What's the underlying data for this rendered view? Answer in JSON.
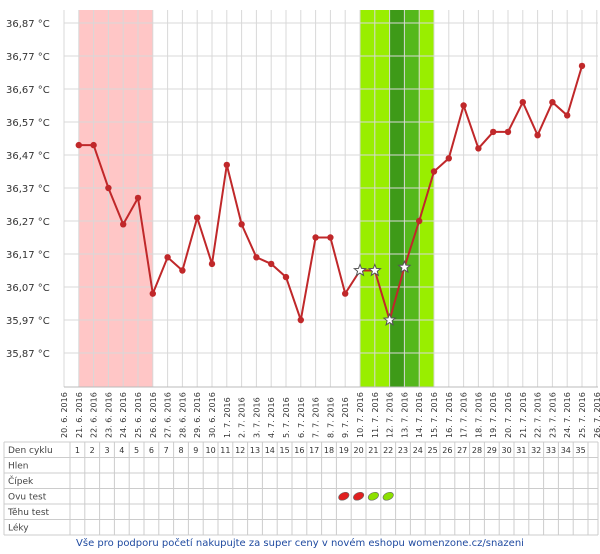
{
  "chart_data": {
    "type": "line",
    "title": "",
    "xlabel": "",
    "ylabel": "",
    "y_tick_labels": [
      "36,87 °C",
      "36,77 °C",
      "36,67 °C",
      "36,57 °C",
      "36,47 °C",
      "36,37 °C",
      "36,27 °C",
      "36,17 °C",
      "36,07 °C",
      "35,97 °C",
      "35,87 °C"
    ],
    "y_ticks": [
      36.87,
      36.77,
      36.67,
      36.57,
      36.47,
      36.37,
      36.27,
      36.17,
      36.07,
      35.97,
      35.87
    ],
    "ylim": [
      35.77,
      36.92
    ],
    "grid": true,
    "x": [
      "20. 6. 2016",
      "21. 6. 2016",
      "22. 6. 2016",
      "23. 6. 2016",
      "24. 6. 2016",
      "25. 6. 2016",
      "26. 6. 2016",
      "27. 6. 2016",
      "28. 6. 2016",
      "29. 6. 2016",
      "30. 6. 2016",
      "1. 7. 2016",
      "2. 7. 2016",
      "3. 7. 2016",
      "4. 7. 2016",
      "5. 7. 2016",
      "6. 7. 2016",
      "7. 7. 2016",
      "8. 7. 2016",
      "9. 7. 2016",
      "10. 7. 2016",
      "11. 7. 2016",
      "12. 7. 2016",
      "13. 7. 2016",
      "14. 7. 2016",
      "15. 7. 2016",
      "16. 7. 2016",
      "17. 7. 2016",
      "18. 7. 2016",
      "19. 7. 2016",
      "20. 7. 2016",
      "21. 7. 2016",
      "22. 7. 2016",
      "23. 7. 2016",
      "24. 7. 2016",
      "25. 7. 2016",
      "26. 7. 2016"
    ],
    "series": [
      {
        "color": "#c0282a",
        "points": [
          {
            "x": "21. 6. 2016",
            "y": 36.5
          },
          {
            "x": "22. 6. 2016",
            "y": 36.5
          },
          {
            "x": "23. 6. 2016",
            "y": 36.37
          },
          {
            "x": "24. 6. 2016",
            "y": 36.26
          },
          {
            "x": "25. 6. 2016",
            "y": 36.34
          },
          {
            "x": "26. 6. 2016",
            "y": 36.05
          },
          {
            "x": "27. 6. 2016",
            "y": 36.16
          },
          {
            "x": "28. 6. 2016",
            "y": 36.12
          },
          {
            "x": "29. 6. 2016",
            "y": 36.28
          },
          {
            "x": "30. 6. 2016",
            "y": 36.14
          },
          {
            "x": "1. 7. 2016",
            "y": 36.44
          },
          {
            "x": "2. 7. 2016",
            "y": 36.26
          },
          {
            "x": "3. 7. 2016",
            "y": 36.16
          },
          {
            "x": "4. 7. 2016",
            "y": 36.14
          },
          {
            "x": "5. 7. 2016",
            "y": 36.1
          },
          {
            "x": "6. 7. 2016",
            "y": 35.97
          },
          {
            "x": "7. 7. 2016",
            "y": 36.22
          },
          {
            "x": "8. 7. 2016",
            "y": 36.22
          },
          {
            "x": "9. 7. 2016",
            "y": 36.05
          },
          {
            "x": "10. 7. 2016",
            "y": 36.12,
            "marker": "star"
          },
          {
            "x": "11. 7. 2016",
            "y": 36.12,
            "marker": "star"
          },
          {
            "x": "12. 7. 2016",
            "y": 35.97,
            "marker": "star"
          },
          {
            "x": "13. 7. 2016",
            "y": 36.13,
            "marker": "star"
          },
          {
            "x": "14. 7. 2016",
            "y": 36.27
          },
          {
            "x": "15. 7. 2016",
            "y": 36.42
          },
          {
            "x": "16. 7. 2016",
            "y": 36.46
          },
          {
            "x": "17. 7. 2016",
            "y": 36.62
          },
          {
            "x": "18. 7. 2016",
            "y": 36.49
          },
          {
            "x": "19. 7. 2016",
            "y": 36.54
          },
          {
            "x": "20. 7. 2016",
            "y": 36.54
          },
          {
            "x": "21. 7. 2016",
            "y": 36.63
          },
          {
            "x": "22. 7. 2016",
            "y": 36.53
          },
          {
            "x": "23. 7. 2016",
            "y": 36.63
          },
          {
            "x": "24. 7. 2016",
            "y": 36.59
          },
          {
            "x": "25. 7. 2016",
            "y": 36.74
          }
        ]
      }
    ],
    "bands": [
      {
        "from": "21. 6. 2016",
        "to": "26. 6. 2016",
        "color": "#ffc6c6"
      },
      {
        "from": "10. 7. 2016",
        "to": "15. 7. 2016",
        "color": "#99ee00"
      },
      {
        "from": "12. 7. 2016",
        "to": "14. 7. 2016",
        "color": "#55b81c"
      },
      {
        "from": "12. 7. 2016",
        "to": "13. 7. 2016",
        "color": "#3e9a18"
      }
    ],
    "table": {
      "row_labels": [
        "Den cyklu",
        "Hlen",
        "Čípek",
        "Ovu test",
        "Těhu test",
        "Léky"
      ],
      "cycle_days": [
        "1",
        "2",
        "3",
        "4",
        "5",
        "6",
        "7",
        "8",
        "9",
        "10",
        "11",
        "12",
        "13",
        "14",
        "15",
        "16",
        "17",
        "18",
        "19",
        "20",
        "21",
        "22",
        "23",
        "24",
        "25",
        "26",
        "27",
        "28",
        "29",
        "30",
        "31",
        "32",
        "33",
        "34",
        "35"
      ],
      "ovu_tests": [
        {
          "day": "19",
          "color": "#e02020"
        },
        {
          "day": "20",
          "color": "#e02020"
        },
        {
          "day": "21",
          "color": "#8ce000"
        },
        {
          "day": "22",
          "color": "#8ce000"
        }
      ]
    }
  },
  "footer": {
    "text": "Vše pro podporu početí nakupujte za super ceny v novém eshopu womenzone.cz/snazeni"
  }
}
